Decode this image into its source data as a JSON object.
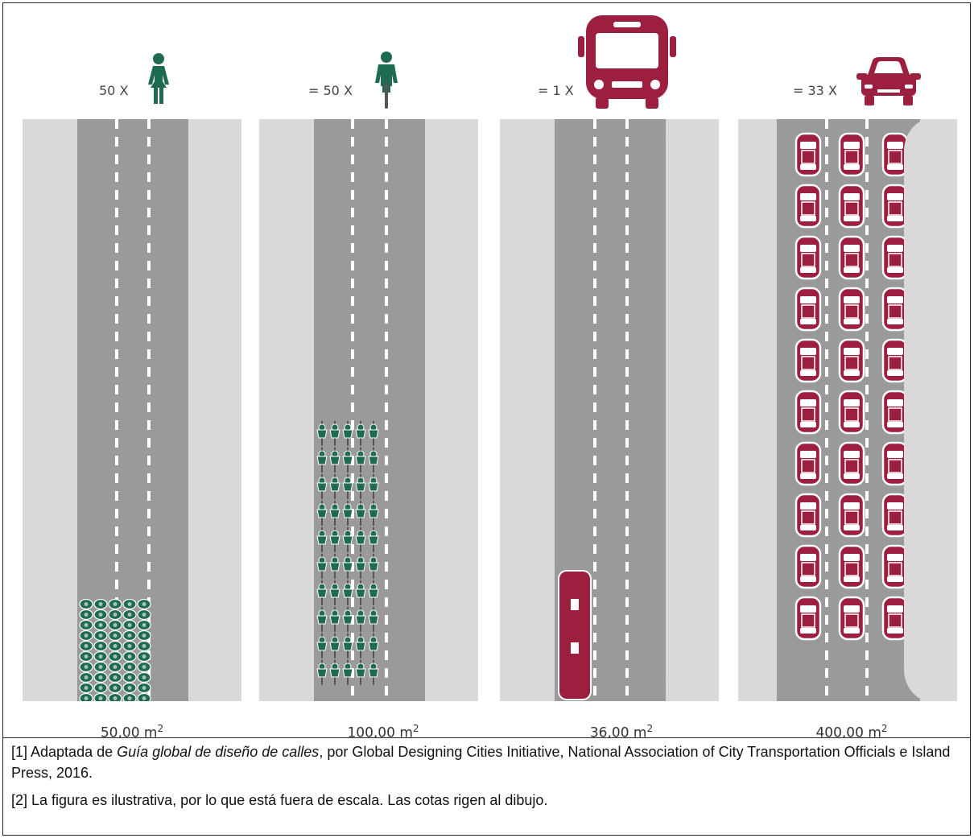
{
  "panels": [
    {
      "id": "pedestrians",
      "label": "50 X",
      "area_value": "50,00 m",
      "area_exp": "2",
      "icon": "pedestrian-icon"
    },
    {
      "id": "cyclists",
      "label": "= 50 X",
      "area_value": "100,00 m",
      "area_exp": "2",
      "icon": "cyclist-icon"
    },
    {
      "id": "bus",
      "label": "= 1 X",
      "area_value": "36,00 m",
      "area_exp": "2",
      "icon": "bus-icon"
    },
    {
      "id": "cars",
      "label": "= 33 X",
      "area_value": "400,00 m",
      "area_exp": "2",
      "icon": "car-icon"
    }
  ],
  "notes": {
    "note1_prefix": "[1] Adaptada de ",
    "note1_title": "Guía global de diseño de calles",
    "note1_suffix": ", por Global Designing Cities Initiative, National Association of City Transportation Officials e Island Press, 2016.",
    "note2": "[2] La figura es ilustrativa, por lo que está fuera de escala. Las cotas rigen al dibujo."
  },
  "colors": {
    "pedestrian_green": "#1f6b4f",
    "vehicle_red": "#9c1f3f",
    "road_gray": "#9a9a9a",
    "sidewalk_gray": "#d9d9d9"
  }
}
